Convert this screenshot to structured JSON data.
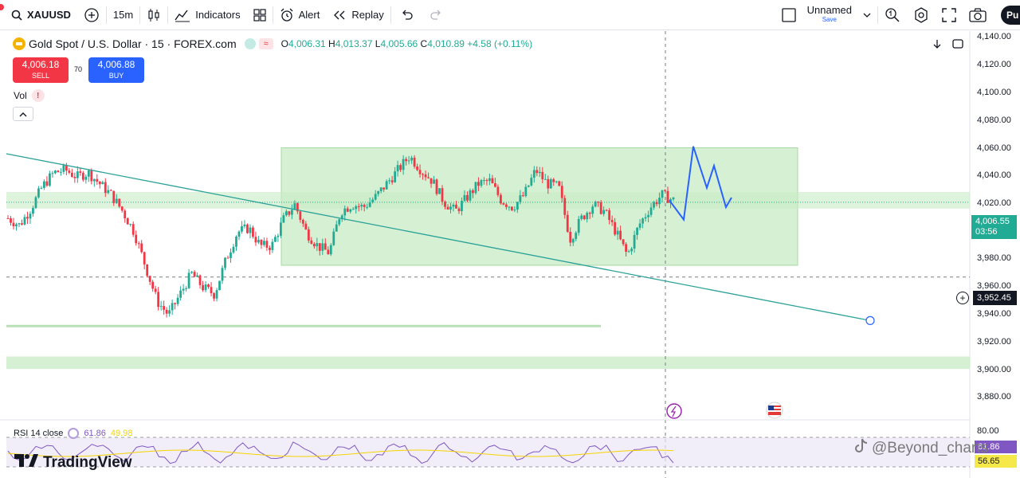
{
  "toolbar": {
    "symbol": "XAUUSD",
    "interval": "15m",
    "indicators_label": "Indicators",
    "alert_label": "Alert",
    "replay_label": "Replay",
    "layout_name": "Unnamed",
    "layout_save": "Save",
    "publish_label": "Pu"
  },
  "legend": {
    "title": "Gold Spot / U.S. Dollar · 15 · FOREX.com",
    "open_key": "O",
    "open": "4,006.31",
    "high_key": "H",
    "high": "4,013.37",
    "low_key": "L",
    "low": "4,005.66",
    "close_key": "C",
    "close": "4,010.89",
    "change": "+4.58 (+0.11%)",
    "sell_price": "4,006.18",
    "sell_label": "SELL",
    "spread": "70",
    "buy_price": "4,006.88",
    "buy_label": "BUY",
    "vol_label": "Vol",
    "warn_glyph": "!"
  },
  "price_axis": {
    "labels": [
      "4,140.00",
      "4,120.00",
      "4,100.00",
      "4,080.00",
      "4,060.00",
      "4,040.00",
      "4,020.00",
      "3,980.00",
      "3,960.00",
      "3,940.00",
      "3,920.00",
      "3,900.00",
      "3,880.00"
    ],
    "rsi_labels": [
      "80.00"
    ],
    "current_price": "4,006.55",
    "countdown": "03:56",
    "crosshair_price": "3,952.45"
  },
  "rsi": {
    "label": "RSI 14 close",
    "value_rsi": "61.86",
    "value_ma": "49.98",
    "tag_rsi": "61.86",
    "tag_ma": "56.65"
  },
  "branding": {
    "logo_text": "TradingView",
    "watermark": "@Beyond_charts"
  },
  "colors": {
    "up": "#22ab94",
    "down": "#f23645",
    "zone": "#c8ebc4",
    "trendline": "#2aa198",
    "projection": "#2962ff",
    "rsi": "#7e57c2",
    "rsi_ma": "#f5d400"
  },
  "chart_data": {
    "type": "candlestick",
    "title": "Gold Spot / U.S. Dollar · 15 · FOREX.com",
    "y_range": [
      3870,
      4145
    ],
    "close_path_approx": [
      3995,
      3990,
      4002,
      4018,
      4028,
      4030,
      4025,
      4028,
      4020,
      4012,
      4000,
      3985,
      3960,
      3935,
      3925,
      3940,
      3955,
      3945,
      3940,
      3965,
      3985,
      3988,
      3975,
      3975,
      3994,
      4005,
      3985,
      3975,
      3970,
      4000,
      4005,
      4003,
      4010,
      4020,
      4030,
      4040,
      4030,
      4022,
      4007,
      4000,
      4010,
      4020,
      4022,
      4008,
      4003,
      4012,
      4030,
      4020,
      4018,
      3980,
      3995,
      4005,
      4000,
      3985,
      3968,
      3990,
      4003,
      4012,
      4008
    ],
    "horizontal_levels": [
      4006.55,
      3952.45
    ],
    "projection_path": [
      4008,
      3994,
      4047,
      4017,
      4033,
      4003,
      4010
    ],
    "trendline_end": 3921
  }
}
